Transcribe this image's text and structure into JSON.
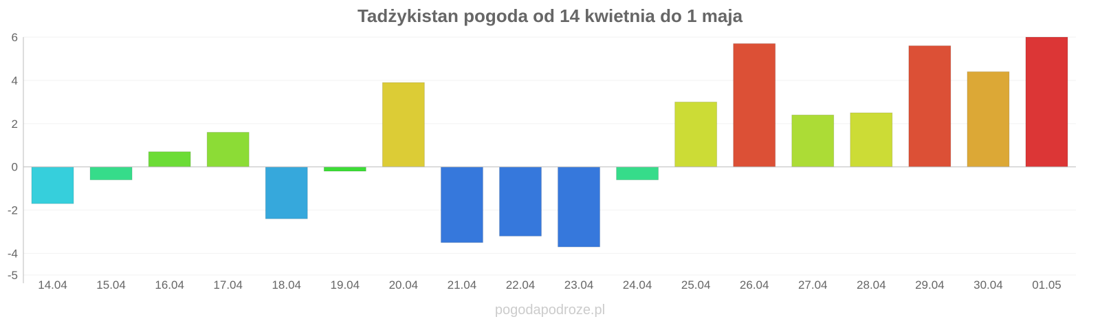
{
  "chart_data": {
    "type": "bar",
    "title": "Tadżykistan pogoda od 14 kwietnia do 1 maja",
    "xlabel": "",
    "ylabel": "",
    "ylim": [
      -5,
      6
    ],
    "yticks": [
      6,
      4,
      2,
      0,
      -2,
      -4,
      -5
    ],
    "grid": true,
    "categories": [
      "14.04",
      "15.04",
      "16.04",
      "17.04",
      "18.04",
      "19.04",
      "20.04",
      "21.04",
      "22.04",
      "23.04",
      "24.04",
      "25.04",
      "26.04",
      "27.04",
      "28.04",
      "29.04",
      "30.04",
      "01.05"
    ],
    "values": [
      -1.7,
      -0.6,
      0.7,
      1.6,
      -2.4,
      -0.2,
      3.9,
      -3.5,
      -3.2,
      -3.7,
      -0.6,
      3.0,
      5.7,
      2.4,
      2.5,
      5.6,
      4.4,
      6.0
    ],
    "colors": [
      "#36cfdc",
      "#36dc8a",
      "#6cdc36",
      "#8cdc36",
      "#36a8dc",
      "#3cdc36",
      "#dccc36",
      "#3678dc",
      "#3678dc",
      "#3678dc",
      "#36dc8a",
      "#ccdc36",
      "#dc5036",
      "#acdc36",
      "#ccdc36",
      "#dc5036",
      "#dca836",
      "#dc3636"
    ]
  },
  "footer": {
    "credit": "pogodapodroze.pl"
  }
}
